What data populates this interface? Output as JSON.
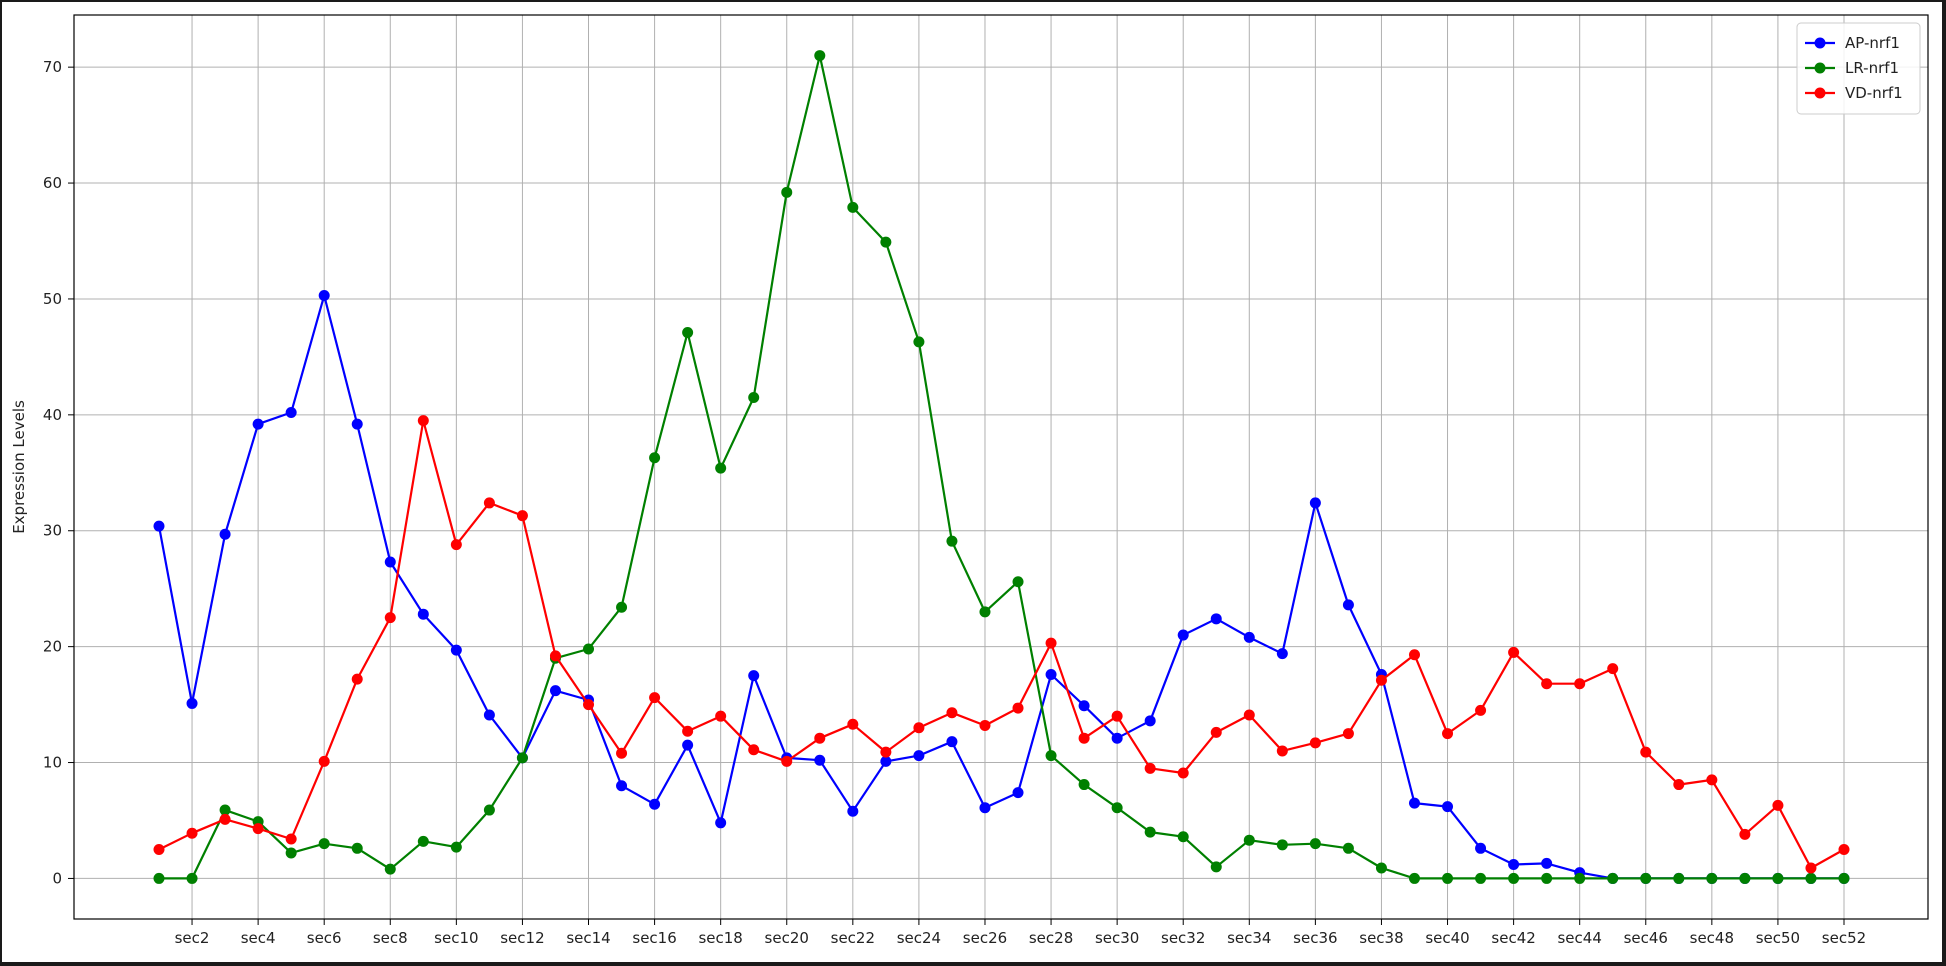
{
  "chart_data": {
    "type": "line",
    "title": "",
    "xlabel": "",
    "ylabel": "Expression Levels",
    "ylim": [
      -3.5,
      74.5
    ],
    "yticks": [
      0,
      10,
      20,
      30,
      40,
      50,
      60,
      70
    ],
    "grid": true,
    "legend_position": "top-right",
    "categories": [
      "sec1",
      "sec2",
      "sec3",
      "sec4",
      "sec5",
      "sec6",
      "sec7",
      "sec8",
      "sec9",
      "sec10",
      "sec11",
      "sec12",
      "sec13",
      "sec14",
      "sec15",
      "sec16",
      "sec17",
      "sec18",
      "sec19",
      "sec20",
      "sec21",
      "sec22",
      "sec23",
      "sec24",
      "sec25",
      "sec26",
      "sec27",
      "sec28",
      "sec29",
      "sec30",
      "sec31",
      "sec32",
      "sec33",
      "sec34",
      "sec35",
      "sec36",
      "sec37",
      "sec38",
      "sec39",
      "sec40",
      "sec41",
      "sec42",
      "sec43",
      "sec44",
      "sec45",
      "sec46",
      "sec47",
      "sec48",
      "sec49",
      "sec50",
      "sec51",
      "sec52"
    ],
    "xtick_labels": [
      "sec2",
      "sec4",
      "sec6",
      "sec8",
      "sec10",
      "sec12",
      "sec14",
      "sec16",
      "sec18",
      "sec20",
      "sec22",
      "sec24",
      "sec26",
      "sec28",
      "sec30",
      "sec32",
      "sec34",
      "sec36",
      "sec38",
      "sec40",
      "sec42",
      "sec44",
      "sec46",
      "sec48",
      "sec50",
      "sec52"
    ],
    "series": [
      {
        "name": "AP-nrf1",
        "color": "#0000ff",
        "values": [
          30.4,
          15.1,
          29.7,
          39.2,
          40.2,
          50.3,
          39.2,
          27.3,
          22.8,
          19.7,
          14.1,
          10.4,
          16.2,
          15.4,
          8.0,
          6.4,
          11.5,
          4.8,
          17.5,
          10.4,
          10.2,
          5.8,
          10.1,
          10.6,
          11.8,
          6.1,
          7.4,
          17.6,
          14.9,
          12.1,
          13.6,
          21.0,
          22.4,
          20.8,
          19.4,
          32.4,
          23.6,
          17.6,
          6.5,
          6.2,
          2.6,
          1.2,
          1.3,
          0.5,
          0.0,
          0.0,
          0.0,
          0.0,
          0.0,
          0.0,
          0.0,
          0.0
        ]
      },
      {
        "name": "LR-nrf1",
        "color": "#008000",
        "values": [
          0.0,
          0.0,
          5.9,
          4.9,
          2.2,
          3.0,
          2.6,
          0.8,
          3.2,
          2.7,
          5.9,
          10.4,
          19.0,
          19.8,
          23.4,
          36.3,
          47.1,
          35.4,
          41.5,
          59.2,
          71.0,
          57.9,
          54.9,
          46.3,
          29.1,
          23.0,
          25.6,
          10.6,
          8.1,
          6.1,
          4.0,
          3.6,
          1.0,
          3.3,
          2.9,
          3.0,
          2.6,
          0.9,
          0.0,
          0.0,
          0.0,
          0.0,
          0.0,
          0.0,
          0.0,
          0.0,
          0.0,
          0.0,
          0.0,
          0.0,
          0.0,
          0.0
        ]
      },
      {
        "name": "VD-nrf1",
        "color": "#ff0000",
        "values": [
          2.5,
          3.9,
          5.1,
          4.3,
          3.4,
          10.1,
          17.2,
          22.5,
          39.5,
          28.8,
          32.4,
          31.3,
          19.2,
          15.0,
          10.8,
          15.6,
          12.7,
          14.0,
          11.1,
          10.1,
          12.1,
          13.3,
          10.9,
          13.0,
          14.3,
          13.2,
          14.7,
          20.3,
          12.1,
          14.0,
          9.5,
          9.1,
          12.6,
          14.1,
          11.0,
          11.7,
          12.5,
          17.1,
          19.3,
          12.5,
          14.5,
          19.5,
          16.8,
          16.8,
          18.1,
          10.9,
          8.1,
          8.5,
          3.8,
          6.3,
          0.9,
          2.5
        ]
      }
    ]
  }
}
